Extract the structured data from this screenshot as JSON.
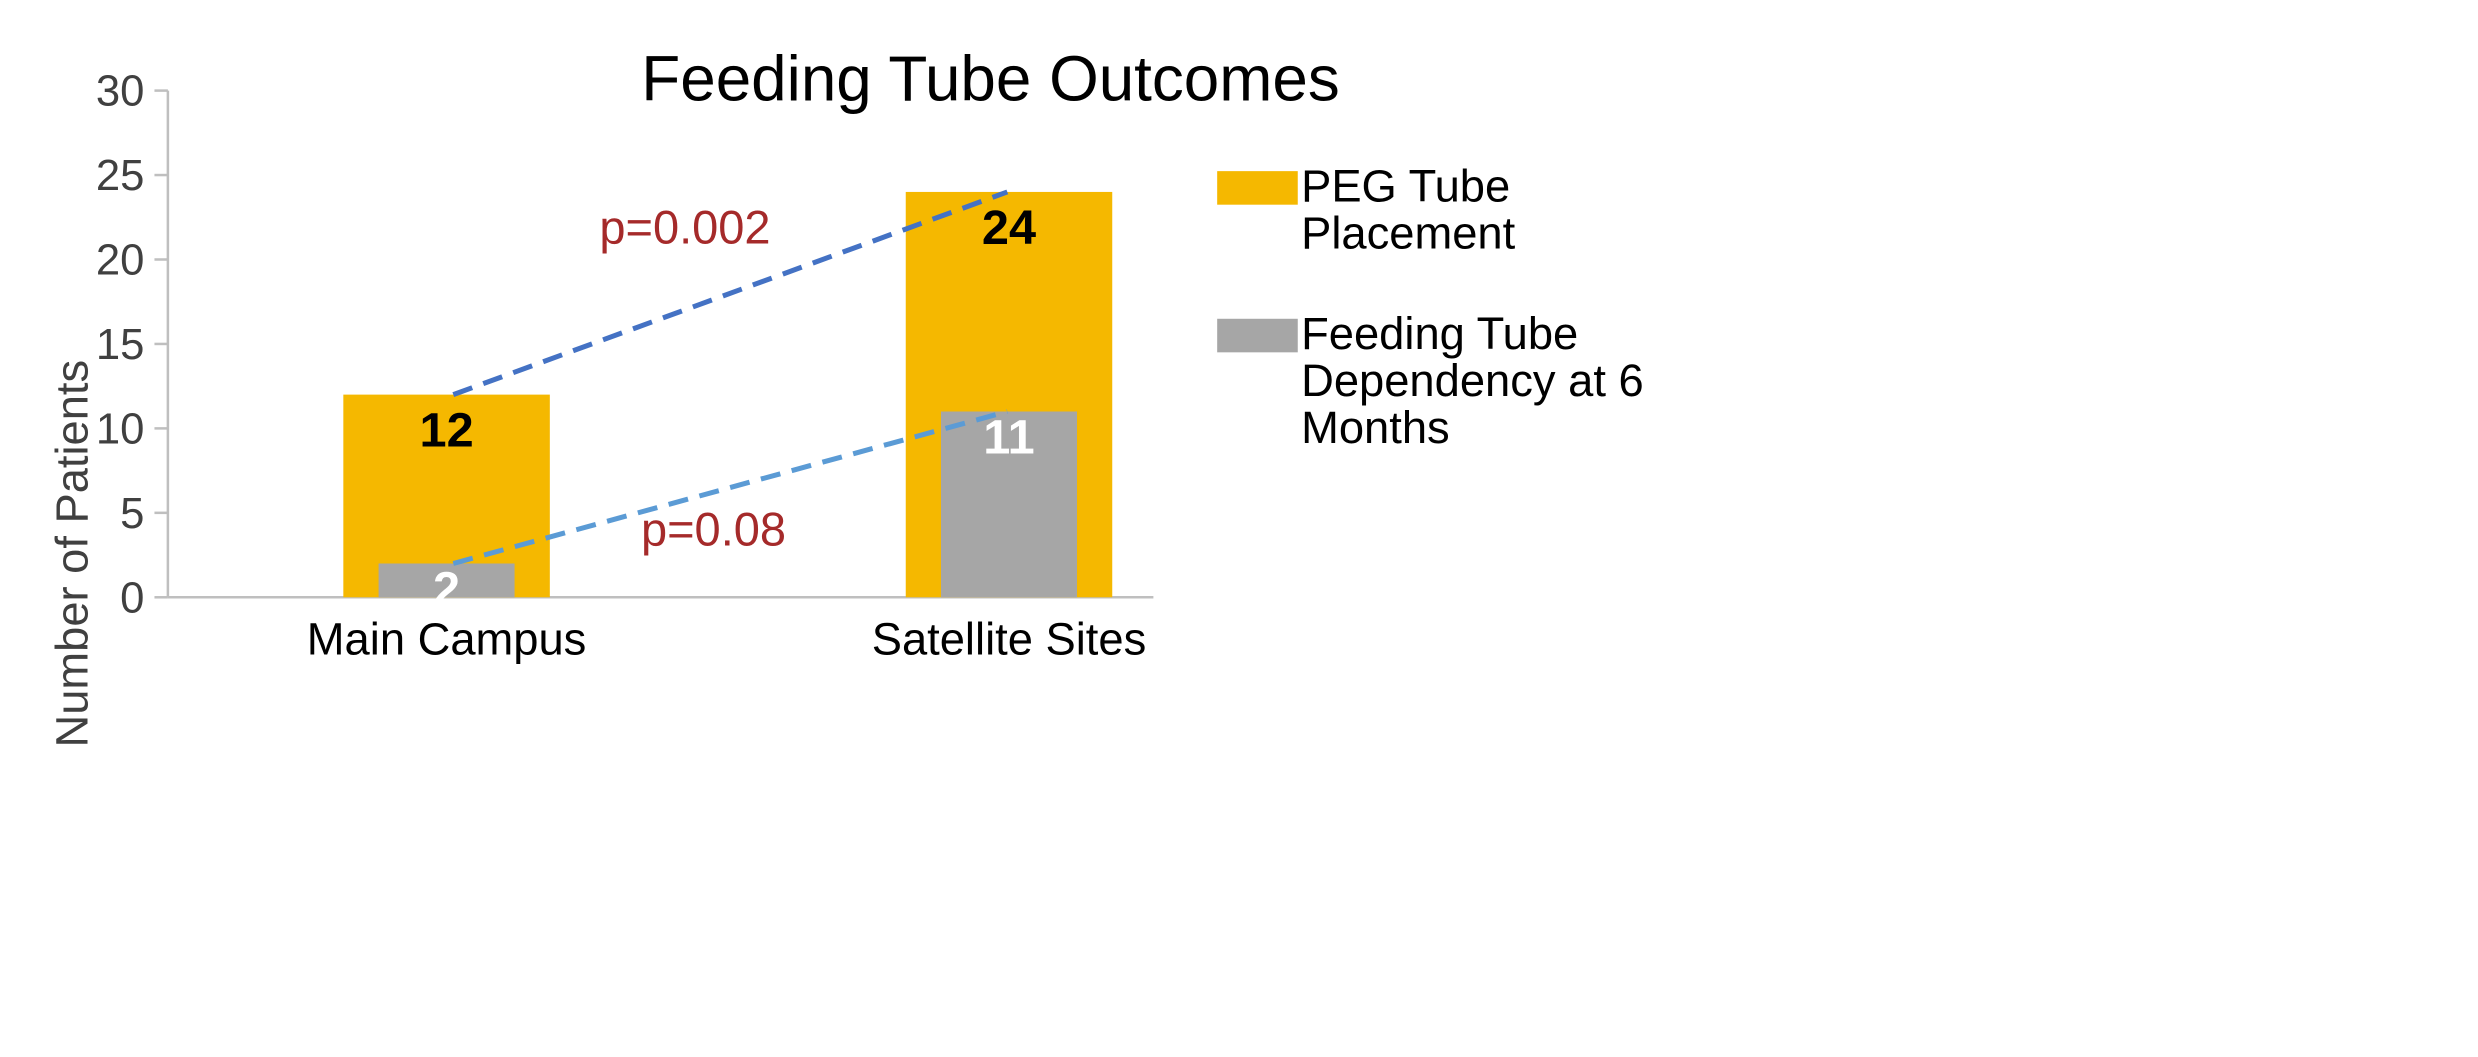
{
  "chart_data": {
    "type": "bar",
    "title": "Feeding Tube Outcomes",
    "ylabel": "Number of Patients",
    "xlabel": "",
    "ylim": [
      0,
      30
    ],
    "yticks": [
      0,
      5,
      10,
      15,
      20,
      25,
      30
    ],
    "categories": [
      "Main Campus",
      "Satellite Sites"
    ],
    "series": [
      {
        "name": "PEG Tube Placement",
        "values": [
          12,
          24
        ],
        "color": "#F5B800",
        "label_color": "#000000"
      },
      {
        "name": "Feeding Tube Dependency at 6 Months",
        "values": [
          2,
          11
        ],
        "color": "#A6A6A6",
        "label_color": "#FFFFFF"
      }
    ],
    "legend_position": "right",
    "trend_lines": [
      {
        "series": "PEG Tube Placement",
        "from": 12,
        "to": 24,
        "color": "#4472C4",
        "p_value": "p=0.002"
      },
      {
        "series": "Feeding Tube Dependency at 6 Months",
        "from": 2,
        "to": 11,
        "color": "#5B9BD5",
        "p_value": "p=0.08"
      }
    ],
    "annotation_color": "#A52A2A"
  }
}
